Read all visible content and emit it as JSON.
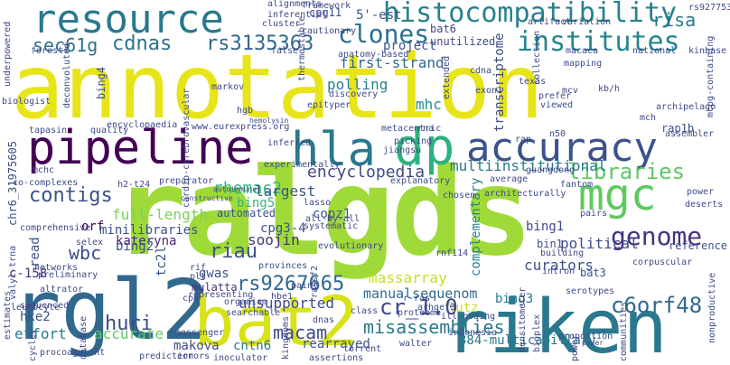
{
  "words": [
    {
      "text": "annotation",
      "color": "#e7e419"
    },
    {
      "text": "ralgds",
      "color": "#a0da39"
    },
    {
      "text": "riken",
      "color": "#2a788e"
    },
    {
      "text": "rgl2",
      "color": "#31688e"
    },
    {
      "text": "bat2",
      "color": "#d8e219"
    },
    {
      "text": "pipeline",
      "color": "#440154"
    },
    {
      "text": "hla",
      "color": "#2a788e"
    },
    {
      "text": "dp",
      "color": "#2db27d"
    },
    {
      "text": "resource",
      "color": "#2a788e"
    },
    {
      "text": "accuracy",
      "color": "#3b528b"
    },
    {
      "text": "mgc",
      "color": "#5ec962"
    },
    {
      "text": "histocompatibility",
      "color": "#26828e"
    },
    {
      "text": "institutes",
      "color": "#25858e"
    },
    {
      "text": "clones",
      "color": "#2c718e"
    },
    {
      "text": "rs3135363",
      "color": "#31688e"
    },
    {
      "text": "cdnas",
      "color": "#2c728e"
    },
    {
      "text": "sec61g",
      "color": "#2d708e"
    },
    {
      "text": "genome",
      "color": "#46337e"
    },
    {
      "text": "libraries",
      "color": "#5ec962"
    },
    {
      "text": "encyclopedia",
      "color": "#3e4a89"
    },
    {
      "text": "contigs",
      "color": "#3b528b"
    },
    {
      "text": "rhemac2",
      "color": "#35b779"
    },
    {
      "text": "c6orf48",
      "color": "#31688e"
    },
    {
      "text": "rs9267665",
      "color": "#31688e"
    },
    {
      "text": "huri",
      "color": "#3e4a89"
    },
    {
      "text": "macam",
      "color": "#3e4a89"
    },
    {
      "text": "cr_1.0",
      "color": "#3e4a89"
    },
    {
      "text": "misassemblies",
      "color": "#2a788e"
    },
    {
      "text": "wbc",
      "color": "#3e4a89"
    },
    {
      "text": "riau",
      "color": "#3b528b"
    },
    {
      "text": "full-length",
      "color": "#7ad151"
    },
    {
      "text": "minilibraries",
      "color": "#3b528b"
    },
    {
      "text": "multiinstitutional",
      "color": "#2a788e"
    },
    {
      "text": "unsupported",
      "color": "#3e4a89"
    },
    {
      "text": "manualsequenom",
      "color": "#31688e"
    },
    {
      "text": "complementary",
      "color": "#26828e"
    },
    {
      "text": "massarray",
      "color": "#c2df23"
    },
    {
      "text": "first-strand",
      "color": "#31688e"
    },
    {
      "text": "polling",
      "color": "#26828e"
    },
    {
      "text": "mhc",
      "color": "#21918c"
    },
    {
      "text": "largest",
      "color": "#3b528b"
    },
    {
      "text": "kateryna",
      "color": "#482576"
    },
    {
      "text": "soojin",
      "color": "#46337e"
    },
    {
      "text": "copz1",
      "color": "#3b528b"
    },
    {
      "text": "cpg3-4",
      "color": "#3b528b"
    },
    {
      "text": "gwas",
      "color": "#3b528b"
    },
    {
      "text": "bing2",
      "color": "#3b528b"
    },
    {
      "text": "bing5",
      "color": "#35b779"
    },
    {
      "text": "curators",
      "color": "#3b528b"
    },
    {
      "text": "political",
      "color": "#3e4a89"
    },
    {
      "text": "bing1",
      "color": "#3e4a89"
    },
    {
      "text": "accurate",
      "color": "#5ec962"
    },
    {
      "text": "rearrayed",
      "color": "#3b528b"
    },
    {
      "text": "384-multicapillary",
      "color": "#2a788e"
    },
    {
      "text": "effort",
      "color": "#2a788e"
    },
    {
      "text": "hke2",
      "color": "#3b528b"
    },
    {
      "text": "makova",
      "color": "#3e4a89"
    },
    {
      "text": "cntn6",
      "color": "#2a788e"
    },
    {
      "text": "lutz",
      "color": "#c2df23"
    },
    {
      "text": "bing3",
      "color": "#2a788e"
    },
    {
      "text": "tc2l",
      "color": "#3b528b"
    },
    {
      "text": "risa",
      "color": "#2a788e"
    },
    {
      "text": "project",
      "color": "#3b528b"
    },
    {
      "text": "bat6",
      "color": "#3e4a89"
    },
    {
      "text": "unutilized",
      "color": "#3e4a89"
    },
    {
      "text": "5'-est",
      "color": "#3b528b"
    },
    {
      "text": "cpg11",
      "color": "#3e4a89"
    },
    {
      "text": "transcriptome",
      "color": "#3e4a89"
    },
    {
      "text": "orf",
      "color": "#440154"
    },
    {
      "text": "read",
      "color": "#3b528b"
    },
    {
      "text": "c-158",
      "color": "#46337e"
    },
    {
      "text": "mulatta",
      "color": "#46337e"
    },
    {
      "text": "reference",
      "color": "#3b528b"
    },
    {
      "text": "automated",
      "color": "#3b528b"
    },
    {
      "text": "bing4",
      "color": "#3b528b"
    },
    {
      "text": "bat3",
      "color": "#3b528b"
    },
    {
      "text": "bin1",
      "color": "#3b528b"
    },
    {
      "text": "rap1b",
      "color": "#3b528b"
    },
    {
      "text": "chr6_31975605",
      "color": "#3e4a89"
    },
    {
      "text": "underpowered",
      "color": "#3e4a89"
    },
    {
      "text": "forests",
      "color": "#3e4a89"
    },
    {
      "text": "biologist",
      "color": "#3e4a89"
    },
    {
      "text": "deconvoluted",
      "color": "#3e4a89"
    },
    {
      "text": "quality",
      "color": "#3e4a89"
    },
    {
      "text": "tapasin",
      "color": "#3e4a89"
    },
    {
      "text": "encyclopaedia",
      "color": "#3e4a89"
    },
    {
      "text": "www.eurexpress.org",
      "color": "#3e4a89"
    },
    {
      "text": "hgb",
      "color": "#3e4a89"
    },
    {
      "text": "inferred",
      "color": "#3e4a89"
    },
    {
      "text": "picking",
      "color": "#3e4a89"
    },
    {
      "text": "jiangsu",
      "color": "#3e4a89"
    },
    {
      "text": "explanatory",
      "color": "#3e4a89"
    },
    {
      "text": "average",
      "color": "#3e4a89"
    },
    {
      "text": "guangdong",
      "color": "#3e4a89"
    },
    {
      "text": "cardio-cerebrovascular",
      "color": "#3e4a89"
    },
    {
      "text": "fantom",
      "color": "#3e4a89"
    },
    {
      "text": "assembler",
      "color": "#3e4a89"
    },
    {
      "text": "n50",
      "color": "#3e4a89"
    },
    {
      "text": "mch",
      "color": "#3e4a89"
    },
    {
      "text": "metacentric",
      "color": "#3e4a89"
    },
    {
      "text": "rna",
      "color": "#3e4a89"
    },
    {
      "text": "rap",
      "color": "#3e4a89"
    },
    {
      "text": "chosen",
      "color": "#3e4a89"
    },
    {
      "text": "lasso",
      "color": "#3e4a89"
    },
    {
      "text": "all-by-all",
      "color": "#3e4a89"
    },
    {
      "text": "systematic",
      "color": "#3e4a89"
    },
    {
      "text": "pairs",
      "color": "#3e4a89"
    },
    {
      "text": "building",
      "color": "#3e4a89"
    },
    {
      "text": "intron",
      "color": "#3e4a89"
    },
    {
      "text": "organism",
      "color": "#3e4a89"
    },
    {
      "text": "provinces",
      "color": "#3e4a89"
    },
    {
      "text": "representing",
      "color": "#3e4a89"
    },
    {
      "text": "paint",
      "color": "#3e4a89"
    },
    {
      "text": "evolutionary",
      "color": "#3e4a89"
    },
    {
      "text": "arhgef3",
      "color": "#3e4a89"
    },
    {
      "text": "bioplex",
      "color": "#3e4a89"
    },
    {
      "text": "densitometer",
      "color": "#3e4a89"
    },
    {
      "text": "r-ras",
      "color": "#3e4a89"
    },
    {
      "text": "proportion",
      "color": "#3e4a89"
    },
    {
      "text": "nonproductive",
      "color": "#3e4a89"
    },
    {
      "text": "serotypes",
      "color": "#3e4a89"
    },
    {
      "text": "mcpg-containing",
      "color": "#3e4a89"
    },
    {
      "text": "rs9277535",
      "color": "#3e4a89"
    },
    {
      "text": "national",
      "color": "#3e4a89"
    },
    {
      "text": "kinbase",
      "color": "#3e4a89"
    },
    {
      "text": "artifact",
      "color": "#3e4a89"
    },
    {
      "text": "variation",
      "color": "#3e4a89"
    },
    {
      "text": "collection",
      "color": "#3e4a89"
    },
    {
      "text": "alignments",
      "color": "#3e4a89"
    },
    {
      "text": "framework",
      "color": "#3e4a89"
    },
    {
      "text": "inferential",
      "color": "#3e4a89"
    },
    {
      "text": "cluster",
      "color": "#3e4a89"
    },
    {
      "text": "cautionary",
      "color": "#3e4a89"
    },
    {
      "text": "thermostable",
      "color": "#3e4a89"
    },
    {
      "text": "false",
      "color": "#3e4a89"
    },
    {
      "text": "anatomy-based",
      "color": "#3e4a89"
    },
    {
      "text": "macaca",
      "color": "#3e4a89"
    },
    {
      "text": "mapping",
      "color": "#3e4a89"
    },
    {
      "text": "cdna",
      "color": "#3e4a89"
    },
    {
      "text": "texas",
      "color": "#3e4a89"
    },
    {
      "text": "exon1",
      "color": "#3e4a89"
    },
    {
      "text": "prefer",
      "color": "#3e4a89"
    },
    {
      "text": "viewed",
      "color": "#3e4a89"
    },
    {
      "text": "kb/h",
      "color": "#3e4a89"
    },
    {
      "text": "mcv",
      "color": "#3e4a89"
    },
    {
      "text": "archipelago",
      "color": "#3e4a89"
    },
    {
      "text": "markov",
      "color": "#3e4a89"
    },
    {
      "text": "discovery",
      "color": "#3e4a89"
    },
    {
      "text": "epityper",
      "color": "#3e4a89"
    },
    {
      "text": "hemolysin",
      "color": "#3e4a89"
    },
    {
      "text": "architecturally",
      "color": "#3e4a89"
    },
    {
      "text": "mchc",
      "color": "#3e4a89"
    },
    {
      "text": "co-complexes",
      "color": "#3e4a89"
    },
    {
      "text": "preparator",
      "color": "#3e4a89"
    },
    {
      "text": "h2-t24",
      "color": "#3e4a89"
    },
    {
      "text": "extended",
      "color": "#3e4a89"
    },
    {
      "text": "autoimmune",
      "color": "#3e4a89"
    },
    {
      "text": "constructive",
      "color": "#3e4a89"
    },
    {
      "text": "comprehensive",
      "color": "#3e4a89"
    },
    {
      "text": "selex",
      "color": "#3e4a89"
    },
    {
      "text": "preliminary",
      "color": "#3e4a89"
    },
    {
      "text": "networks",
      "color": "#3e4a89"
    },
    {
      "text": "altrator",
      "color": "#3e4a89"
    },
    {
      "text": "leukocyte",
      "color": "#3e4a89"
    },
    {
      "text": "sequenced",
      "color": "#3e4a89"
    },
    {
      "text": "searchable",
      "color": "#3e4a89"
    },
    {
      "text": "valyl-trna",
      "color": "#3e4a89"
    },
    {
      "text": "hbe1",
      "color": "#3e4a89"
    },
    {
      "text": "dnas",
      "color": "#3e4a89"
    },
    {
      "text": "class",
      "color": "#3e4a89"
    },
    {
      "text": "proteome",
      "color": "#3e4a89"
    },
    {
      "text": "ill-coding",
      "color": "#3e4a89"
    },
    {
      "text": "estimates",
      "color": "#3e4a89"
    },
    {
      "text": "indonesia",
      "color": "#3e4a89"
    },
    {
      "text": "database",
      "color": "#3e4a89"
    },
    {
      "text": "walter",
      "color": "#3e4a89"
    },
    {
      "text": "torrent",
      "color": "#3e4a89"
    },
    {
      "text": "assertions",
      "color": "#3e4a89"
    },
    {
      "text": "prediction",
      "color": "#3e4a89"
    },
    {
      "text": "errors",
      "color": "#3e4a89"
    },
    {
      "text": "inoculator",
      "color": "#3e4a89"
    },
    {
      "text": "messenger",
      "color": "#3e4a89"
    },
    {
      "text": "cycler",
      "color": "#3e4a89"
    },
    {
      "text": "procoagulant",
      "color": "#3e4a89"
    },
    {
      "text": "cpg",
      "color": "#3e4a89"
    },
    {
      "text": "rif",
      "color": "#3e4a89"
    },
    {
      "text": "plt",
      "color": "#3e4a89"
    },
    {
      "text": "rassf2",
      "color": "#3e4a89"
    },
    {
      "text": "experimentally",
      "color": "#3e4a89"
    },
    {
      "text": "rnf114",
      "color": "#3e4a89"
    },
    {
      "text": "corpuscular",
      "color": "#3e4a89"
    },
    {
      "text": "deserts",
      "color": "#3e4a89"
    },
    {
      "text": "power",
      "color": "#3e4a89"
    },
    {
      "text": "communities",
      "color": "#3e4a89"
    },
    {
      "text": "kingdoms",
      "color": "#3e4a89"
    },
    {
      "text": "requested",
      "color": "#3e4a89"
    },
    {
      "text": "gena",
      "color": "#3e4a89"
    }
  ]
}
